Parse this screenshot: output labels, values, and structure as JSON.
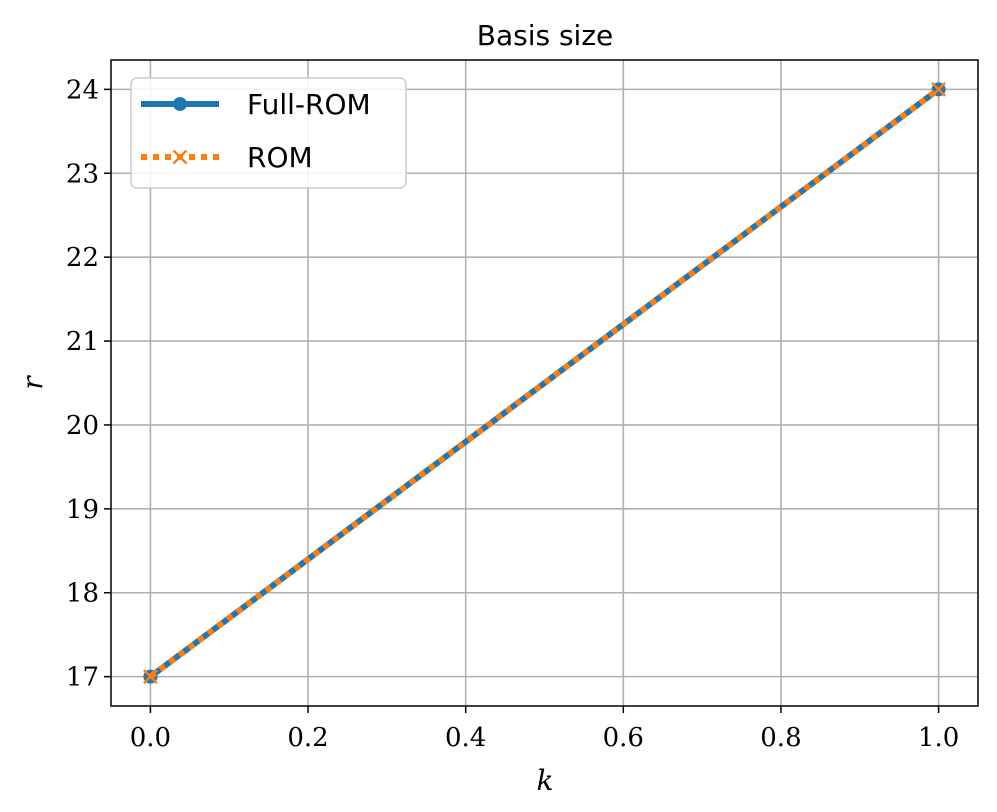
{
  "chart_data": {
    "type": "line",
    "title": "Basis size",
    "xlabel": "k",
    "ylabel": "r",
    "xlim": [
      -0.05,
      1.05
    ],
    "ylim": [
      16.65,
      24.35
    ],
    "xticks": [
      0.0,
      0.2,
      0.4,
      0.6,
      0.8,
      1.0
    ],
    "xtick_labels": [
      "0.0",
      "0.2",
      "0.4",
      "0.6",
      "0.8",
      "1.0"
    ],
    "yticks": [
      17,
      18,
      19,
      20,
      21,
      22,
      23,
      24
    ],
    "ytick_labels": [
      "17",
      "18",
      "19",
      "20",
      "21",
      "22",
      "23",
      "24"
    ],
    "grid": true,
    "legend_position": "top-left",
    "x": [
      0.0,
      1.0
    ],
    "series": [
      {
        "name": "Full-ROM",
        "values": [
          17,
          24
        ],
        "color": "#1f77b4",
        "marker": "circle",
        "linestyle": "solid"
      },
      {
        "name": "ROM",
        "values": [
          17,
          24
        ],
        "color": "#ff7f0e",
        "marker": "x",
        "linestyle": "dotted"
      }
    ]
  }
}
